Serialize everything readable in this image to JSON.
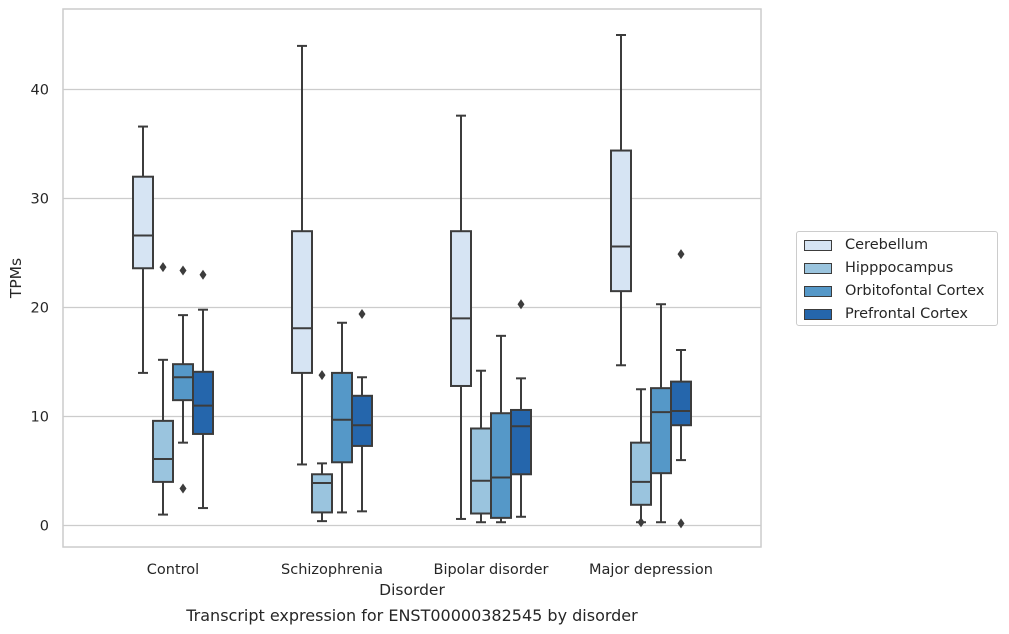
{
  "chart_data": {
    "type": "box",
    "xlabel": "Disorder",
    "ylabel": "TPMs",
    "ylim": [
      -2,
      47
    ],
    "yticks": [
      0,
      10,
      20,
      30,
      40
    ],
    "grid": "horizontal",
    "legend_position": "right",
    "categories": [
      "Control",
      "Schizophrenia",
      "Bipolar disorder",
      "Major depression"
    ],
    "series": [
      {
        "name": "Cerebellum",
        "color": "#d6e4f3",
        "boxes": [
          {
            "whisker_low": 14.0,
            "q1": 23.6,
            "median": 26.6,
            "q3": 32.0,
            "whisker_high": 36.6,
            "outliers": []
          },
          {
            "whisker_low": 5.6,
            "q1": 14.0,
            "median": 18.1,
            "q3": 27.0,
            "whisker_high": 44.0,
            "outliers": []
          },
          {
            "whisker_low": 0.6,
            "q1": 12.8,
            "median": 19.0,
            "q3": 27.0,
            "whisker_high": 37.6,
            "outliers": []
          },
          {
            "whisker_low": 14.7,
            "q1": 21.5,
            "median": 25.6,
            "q3": 34.4,
            "whisker_high": 45.0,
            "outliers": []
          }
        ]
      },
      {
        "name": "Hipppocampus",
        "color": "#9ac4de",
        "boxes": [
          {
            "whisker_low": 1.0,
            "q1": 4.0,
            "median": 6.1,
            "q3": 9.6,
            "whisker_high": 15.2,
            "outliers": [
              23.7
            ]
          },
          {
            "whisker_low": 0.4,
            "q1": 1.2,
            "median": 3.9,
            "q3": 4.7,
            "whisker_high": 5.7,
            "outliers": [
              13.8
            ]
          },
          {
            "whisker_low": 0.3,
            "q1": 1.1,
            "median": 4.1,
            "q3": 8.9,
            "whisker_high": 14.2,
            "outliers": []
          },
          {
            "whisker_low": 0.3,
            "q1": 1.9,
            "median": 4.0,
            "q3": 7.6,
            "whisker_high": 12.5,
            "outliers": [
              0.3
            ]
          }
        ]
      },
      {
        "name": "Orbitofontal Cortex",
        "color": "#5598c8",
        "boxes": [
          {
            "whisker_low": 7.6,
            "q1": 11.5,
            "median": 13.6,
            "q3": 14.8,
            "whisker_high": 19.3,
            "outliers": [
              23.4,
              3.4
            ]
          },
          {
            "whisker_low": 1.2,
            "q1": 5.8,
            "median": 9.7,
            "q3": 14.0,
            "whisker_high": 18.6,
            "outliers": []
          },
          {
            "whisker_low": 0.3,
            "q1": 0.7,
            "median": 4.4,
            "q3": 10.3,
            "whisker_high": 17.4,
            "outliers": []
          },
          {
            "whisker_low": 0.3,
            "q1": 4.8,
            "median": 10.4,
            "q3": 12.6,
            "whisker_high": 20.3,
            "outliers": []
          }
        ]
      },
      {
        "name": "Prefrontal Cortex",
        "color": "#2566ac",
        "boxes": [
          {
            "whisker_low": 1.6,
            "q1": 8.4,
            "median": 11.0,
            "q3": 14.1,
            "whisker_high": 19.8,
            "outliers": [
              23.0
            ]
          },
          {
            "whisker_low": 1.3,
            "q1": 7.3,
            "median": 9.2,
            "q3": 11.9,
            "whisker_high": 13.6,
            "outliers": [
              19.4
            ]
          },
          {
            "whisker_low": 0.8,
            "q1": 4.7,
            "median": 9.1,
            "q3": 10.6,
            "whisker_high": 13.5,
            "outliers": [
              20.3
            ]
          },
          {
            "whisker_low": 6.0,
            "q1": 9.2,
            "median": 10.5,
            "q3": 13.2,
            "whisker_high": 16.1,
            "outliers": [
              24.9,
              0.2
            ]
          }
        ]
      }
    ]
  },
  "caption": "Transcript expression for ENST00000382545 by disorder"
}
